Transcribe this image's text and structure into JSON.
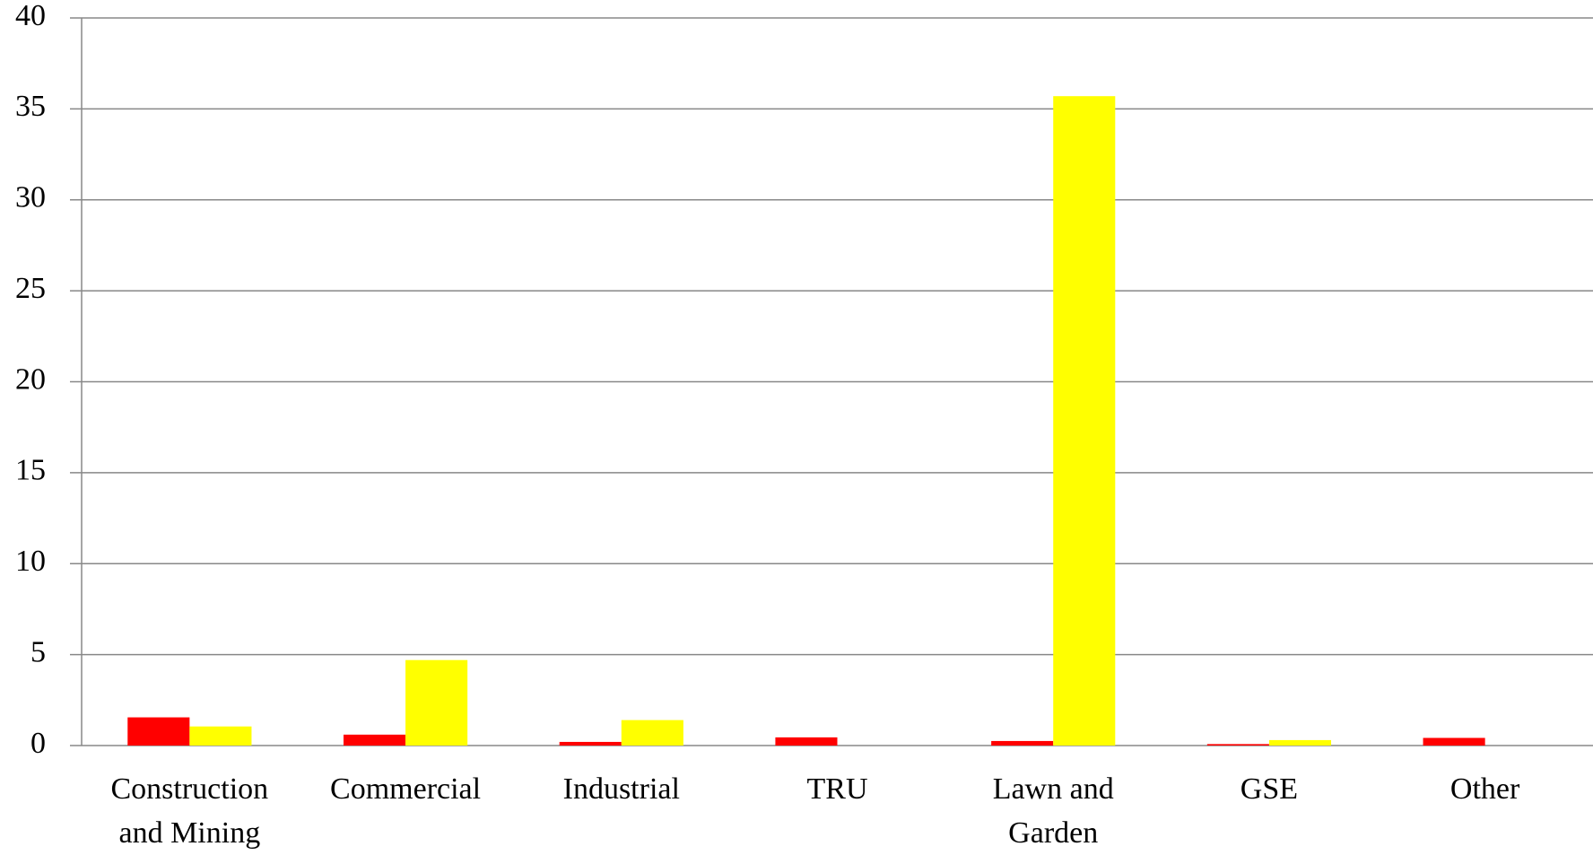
{
  "chart_data": {
    "type": "bar",
    "categories": [
      "Construction and Mining",
      "Commercial",
      "Industrial",
      "TRU",
      "Lawn and Garden",
      "GSE",
      "Other"
    ],
    "series": [
      {
        "color": "#ff0000",
        "values": [
          1.55,
          0.6,
          0.2,
          0.45,
          0.25,
          0.08,
          0.42
        ]
      },
      {
        "color": "#ffff00",
        "values": [
          1.05,
          4.7,
          1.4,
          0,
          35.7,
          0.3,
          0
        ]
      }
    ],
    "ylim": [
      0,
      40
    ],
    "yticks": [
      0,
      5,
      10,
      15,
      20,
      25,
      30,
      35,
      40
    ],
    "grid": true
  }
}
